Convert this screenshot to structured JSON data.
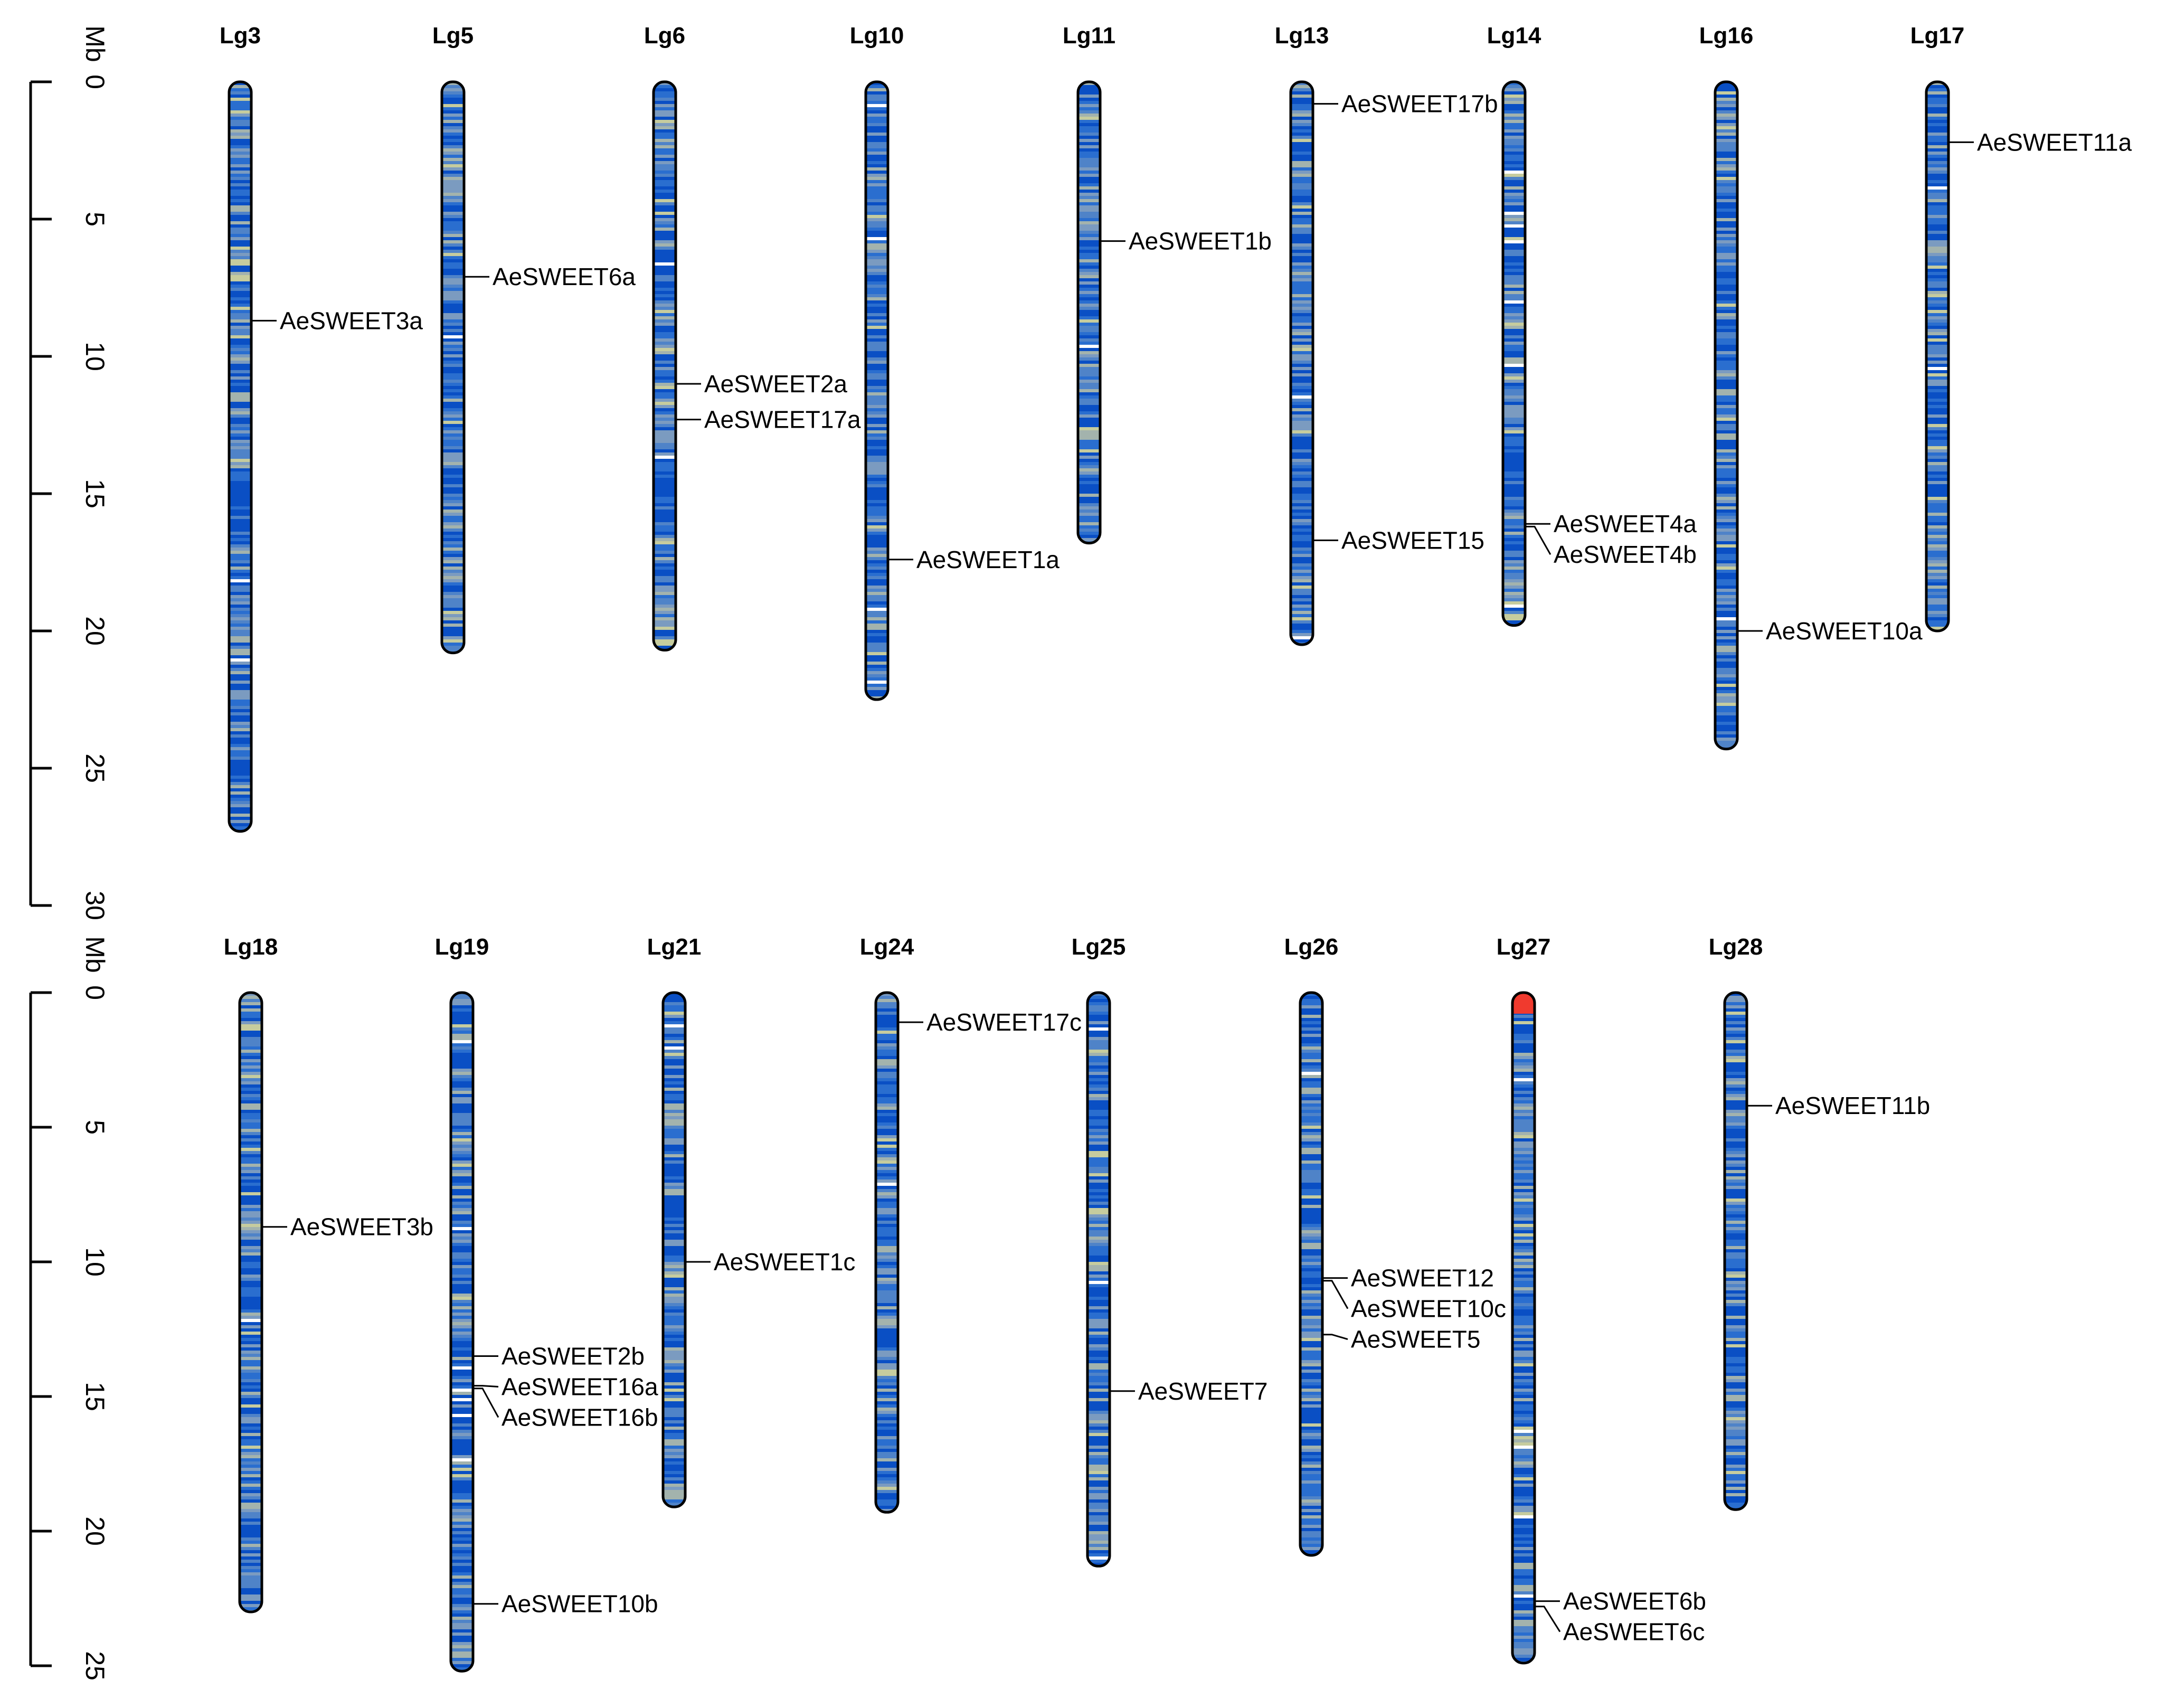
{
  "density_colors": [
    "#0a4fc4",
    "#2a6ecf",
    "#4f83c8",
    "#7b9bc0",
    "#a3b3ad",
    "#c6cc9e",
    "#ffffff"
  ],
  "unit": "Mb",
  "panels": [
    {
      "id": "top",
      "ticks": [
        "0",
        "5",
        "10",
        "15",
        "20",
        "25",
        "30"
      ],
      "tick_values": [
        0,
        5,
        10,
        15,
        20,
        25,
        30
      ],
      "axis_max": 30,
      "chromosomes": [
        {
          "name": "Lg3",
          "length": 27.3,
          "seed": 3,
          "genes": [
            {
              "name": "AeSWEET3a",
              "pos": 8.7
            }
          ]
        },
        {
          "name": "Lg5",
          "length": 20.8,
          "seed": 5,
          "genes": [
            {
              "name": "AeSWEET6a",
              "pos": 7.1
            }
          ]
        },
        {
          "name": "Lg6",
          "length": 20.7,
          "seed": 6,
          "genes": [
            {
              "name": "AeSWEET2a",
              "pos": 11.0
            },
            {
              "name": "AeSWEET17a",
              "pos": 12.3
            }
          ]
        },
        {
          "name": "Lg10",
          "length": 22.5,
          "seed": 10,
          "genes": [
            {
              "name": "AeSWEET1a",
              "pos": 17.4
            }
          ]
        },
        {
          "name": "Lg11",
          "length": 16.8,
          "seed": 11,
          "genes": [
            {
              "name": "AeSWEET1b",
              "pos": 5.8
            }
          ]
        },
        {
          "name": "Lg13",
          "length": 20.5,
          "seed": 13,
          "genes": [
            {
              "name": "AeSWEET17b",
              "pos": 0.8
            },
            {
              "name": "AeSWEET15",
              "pos": 16.7
            }
          ]
        },
        {
          "name": "Lg14",
          "length": 19.8,
          "seed": 14,
          "genes": [
            {
              "name": "AeSWEET4a",
              "pos": 16.1
            },
            {
              "name": "AeSWEET4b",
              "pos": 16.2
            }
          ]
        },
        {
          "name": "Lg16",
          "length": 24.3,
          "seed": 16,
          "genes": [
            {
              "name": "AeSWEET10a",
              "pos": 20.0
            }
          ]
        },
        {
          "name": "Lg17",
          "length": 20.0,
          "seed": 17,
          "genes": [
            {
              "name": "AeSWEET11a",
              "pos": 2.2
            }
          ]
        }
      ]
    },
    {
      "id": "bottom",
      "ticks": [
        "0",
        "5",
        "10",
        "15",
        "20",
        "25"
      ],
      "tick_values": [
        0,
        5,
        10,
        15,
        20,
        25
      ],
      "axis_max": 25,
      "chromosomes": [
        {
          "name": "Lg18",
          "length": 23.0,
          "seed": 18,
          "genes": [
            {
              "name": "AeSWEET3b",
              "pos": 8.7
            }
          ]
        },
        {
          "name": "Lg19",
          "length": 25.2,
          "seed": 19,
          "genes": [
            {
              "name": "AeSWEET2b",
              "pos": 13.5
            },
            {
              "name": "AeSWEET16a",
              "pos": 14.6
            },
            {
              "name": "AeSWEET16b",
              "pos": 14.7
            },
            {
              "name": "AeSWEET10b",
              "pos": 22.7
            }
          ]
        },
        {
          "name": "Lg21",
          "length": 19.1,
          "seed": 21,
          "genes": [
            {
              "name": "AeSWEET1c",
              "pos": 10.0
            }
          ]
        },
        {
          "name": "Lg24",
          "length": 19.3,
          "seed": 24,
          "genes": [
            {
              "name": "AeSWEET17c",
              "pos": 1.1
            }
          ]
        },
        {
          "name": "Lg25",
          "length": 21.3,
          "seed": 25,
          "genes": [
            {
              "name": "AeSWEET7",
              "pos": 14.8
            }
          ]
        },
        {
          "name": "Lg26",
          "length": 20.9,
          "seed": 26,
          "genes": [
            {
              "name": "AeSWEET12",
              "pos": 10.6
            },
            {
              "name": "AeSWEET10c",
              "pos": 10.7
            },
            {
              "name": "AeSWEET5",
              "pos": 12.7
            }
          ]
        },
        {
          "name": "Lg27",
          "length": 24.9,
          "seed": 27,
          "highlight": "#f03a2e",
          "genes": [
            {
              "name": "AeSWEET6b",
              "pos": 22.6
            },
            {
              "name": "AeSWEET6c",
              "pos": 22.8
            }
          ]
        },
        {
          "name": "Lg28",
          "length": 19.2,
          "seed": 28,
          "genes": [
            {
              "name": "AeSWEET11b",
              "pos": 4.2
            }
          ]
        }
      ]
    }
  ]
}
